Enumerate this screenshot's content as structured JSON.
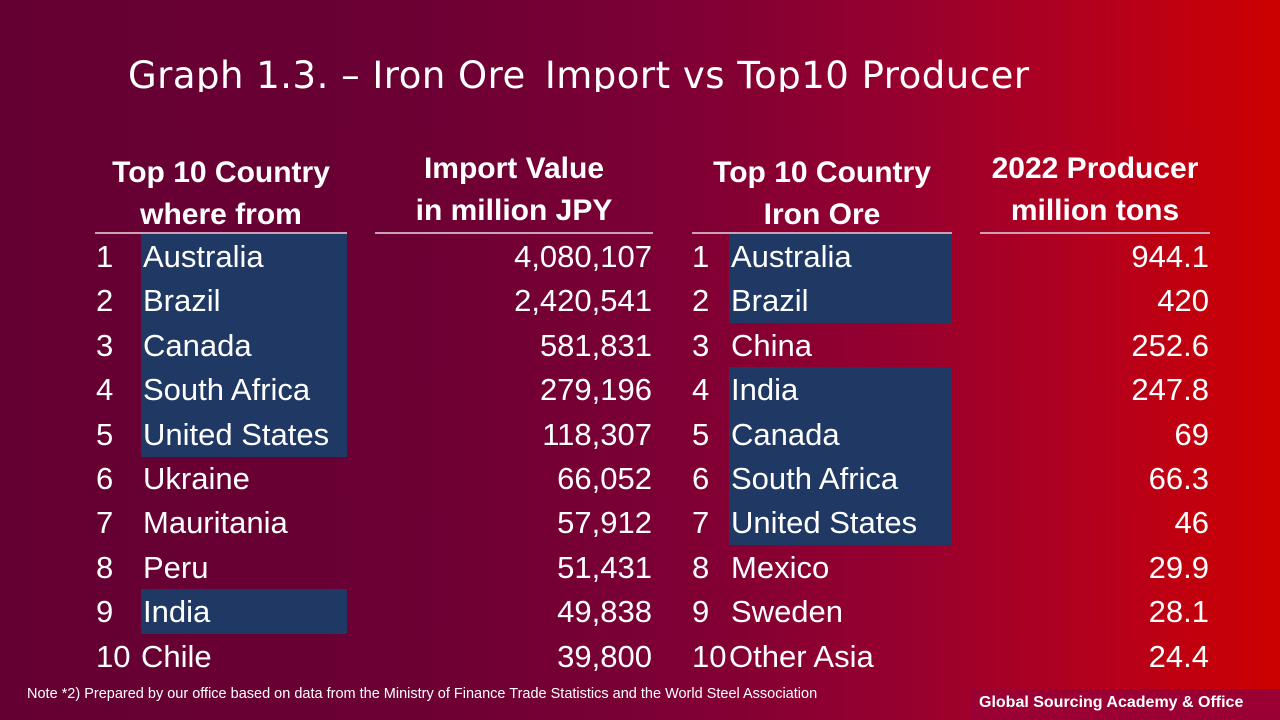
{
  "title": "Graph 1.3. – Iron Ore_Import vs Top10 Producer",
  "import_table": {
    "country_header": [
      "Top 10 Country",
      "where from"
    ],
    "value_header": [
      "Import Value",
      "in million JPY"
    ],
    "rows": [
      {
        "rank": "1",
        "country": "Australia",
        "value": "4,080,107",
        "highlighted": true
      },
      {
        "rank": "2",
        "country": "Brazil",
        "value": "2,420,541",
        "highlighted": true
      },
      {
        "rank": "3",
        "country": "Canada",
        "value": "581,831",
        "highlighted": true
      },
      {
        "rank": "4",
        "country": "South Africa",
        "value": "279,196",
        "highlighted": true
      },
      {
        "rank": "5",
        "country": "United States",
        "value": "118,307",
        "highlighted": true
      },
      {
        "rank": "6",
        "country": "Ukraine",
        "value": "66,052",
        "highlighted": false
      },
      {
        "rank": "7",
        "country": "Mauritania",
        "value": "57,912",
        "highlighted": false
      },
      {
        "rank": "8",
        "country": "Peru",
        "value": "51,431",
        "highlighted": false
      },
      {
        "rank": "9",
        "country": "India",
        "value": "49,838",
        "highlighted": true
      },
      {
        "rank": "10",
        "country": "Chile",
        "value": "39,800",
        "highlighted": false
      }
    ]
  },
  "producer_table": {
    "country_header": [
      "Top 10 Country",
      "Iron Ore"
    ],
    "value_header": [
      "2022 Producer",
      "million tons"
    ],
    "rows": [
      {
        "rank": "1",
        "country": "Australia",
        "value": "944.1",
        "highlighted": true
      },
      {
        "rank": "2",
        "country": "Brazil",
        "value": "420",
        "highlighted": true
      },
      {
        "rank": "3",
        "country": "China",
        "value": "252.6",
        "highlighted": false
      },
      {
        "rank": "4",
        "country": "India",
        "value": "247.8",
        "highlighted": true
      },
      {
        "rank": "5",
        "country": "Canada",
        "value": "69",
        "highlighted": true
      },
      {
        "rank": "6",
        "country": "South Africa",
        "value": "66.3",
        "highlighted": true
      },
      {
        "rank": "7",
        "country": "United States",
        "value": "46",
        "highlighted": true
      },
      {
        "rank": "8",
        "country": "Mexico",
        "value": "29.9",
        "highlighted": false
      },
      {
        "rank": "9",
        "country": "Sweden",
        "value": "28.1",
        "highlighted": false
      },
      {
        "rank": "10",
        "country": "Other Asia",
        "value": "24.4",
        "highlighted": false
      }
    ]
  },
  "note": "Note *2)  Prepared by our office based on data from the Ministry of Finance Trade Statistics and the World Steel Association",
  "brand": "Global Sourcing Academy & Office",
  "colors": {
    "highlight": "#203864",
    "background_left": "#650033",
    "background_right": "#cc0000",
    "brand_band": "#9a0033"
  }
}
